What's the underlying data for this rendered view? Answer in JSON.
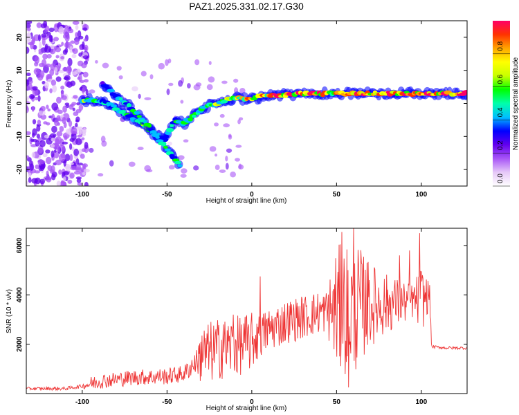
{
  "chart_data": [
    {
      "type": "heatmap",
      "title": "PAZ1.2025.331.02.17.G30",
      "xlabel": "Height of straight line (km)",
      "ylabel": "Frequency (Hz)",
      "xlim": [
        -133,
        127
      ],
      "ylim": [
        -25,
        25
      ],
      "xticks": [
        -100,
        -50,
        0,
        50,
        100
      ],
      "yticks": [
        -20,
        -10,
        0,
        10,
        20
      ],
      "colorbar": {
        "label": "Normalized spectral amplitude",
        "range": [
          0,
          1
        ],
        "ticks": [
          "0.0",
          "0.2",
          "0.4",
          "0.6",
          "0.8"
        ],
        "tick_values": [
          0,
          0.2,
          0.4,
          0.6,
          0.8
        ],
        "colors": [
          "#ffffff",
          "#e6c8f8",
          "#a855f7",
          "#6200ee",
          "#0000ff",
          "#00bfff",
          "#00ffaa",
          "#00ff00",
          "#c8ff00",
          "#ffff00",
          "#ffa500",
          "#ff3300",
          "#ff0066"
        ]
      },
      "ridge": {
        "x": [
          -100,
          -92,
          -85,
          -75,
          -65,
          -58,
          -52,
          -45,
          -40,
          -35,
          -30,
          -25,
          -20,
          -15,
          -10,
          -5,
          0,
          5,
          10,
          20,
          30,
          40,
          50,
          60,
          70,
          80,
          90,
          100,
          110,
          127
        ],
        "y": [
          1,
          1,
          0,
          -3,
          -6,
          -9,
          -11,
          -5,
          -6,
          -4,
          -2,
          -0.5,
          0,
          1,
          1.5,
          1.5,
          1.5,
          2,
          2.5,
          2.5,
          3,
          3,
          3,
          3,
          3,
          3,
          3,
          3,
          3,
          3
        ],
        "amp": [
          0.55,
          0.5,
          0.4,
          0.45,
          0.5,
          0.5,
          0.45,
          0.45,
          0.45,
          0.5,
          0.5,
          0.55,
          0.6,
          0.6,
          0.65,
          0.7,
          0.7,
          0.75,
          0.8,
          0.85,
          0.85,
          0.8,
          0.75,
          0.8,
          0.8,
          0.85,
          0.85,
          0.85,
          0.85,
          0.95
        ]
      },
      "descending_branch": {
        "x": [
          -88,
          -80,
          -72,
          -64,
          -56,
          -50,
          -45,
          -42
        ],
        "y": [
          6,
          2,
          -1,
          -5,
          -10,
          -14,
          -17,
          -19
        ],
        "amp": [
          0.35,
          0.4,
          0.45,
          0.5,
          0.5,
          0.45,
          0.45,
          0.35
        ]
      },
      "noise_band_x": [
        -133,
        -97
      ]
    },
    {
      "type": "line",
      "title": "",
      "xlabel": "Height of straight line (km)",
      "ylabel": "SNR (10 * v/v)",
      "xlim": [
        -133,
        127
      ],
      "ylim": [
        0,
        6700
      ],
      "xticks": [
        -100,
        -50,
        0,
        50,
        100
      ],
      "yticks": [
        2000,
        4000,
        6000
      ],
      "series": [
        {
          "name": "SNR",
          "color": "#ee3333",
          "trend": {
            "x": [
              -133,
              -110,
              -100,
              -90,
              -70,
              -50,
              -40,
              -30,
              -20,
              -10,
              0,
              10,
              20,
              30,
              40,
              45,
              50,
              60,
              70,
              80,
              90,
              100,
              105,
              106,
              115,
              127
            ],
            "y": [
              200,
              200,
              300,
              500,
              650,
              700,
              800,
              1500,
              1800,
              1900,
              2100,
              2600,
              2900,
              3100,
              3300,
              3350,
              3400,
              3500,
              3600,
              3650,
              3700,
              3800,
              4000,
              1900,
              1850,
              1850
            ]
          },
          "noise": {
            "x": [
              -133,
              -100,
              -95,
              -40,
              -32,
              -30,
              0,
              5,
              44,
              46,
              50,
              60,
              70,
              80,
              95,
              100,
              105,
              106,
              127
            ],
            "amp": [
              60,
              80,
              300,
              350,
              500,
              1300,
              1200,
              900,
              900,
              1400,
              2600,
              2800,
              1700,
              1200,
              700,
              1400,
              500,
              60,
              60
            ]
          },
          "spikes": [
            {
              "x": -29.5,
              "y": 2350
            },
            {
              "x": -17,
              "y": 2800
            },
            {
              "x": 5,
              "y": 4750
            },
            {
              "x": 3.5,
              "y": 2700
            },
            {
              "x": -11,
              "y": 3200
            },
            {
              "x": 53,
              "y": 6550
            },
            {
              "x": 60,
              "y": 6700
            },
            {
              "x": 57,
              "y": 250
            },
            {
              "x": 99,
              "y": 6500
            },
            {
              "x": 93,
              "y": 5800
            },
            {
              "x": 87,
              "y": 5600
            },
            {
              "x": 68,
              "y": 5300
            }
          ]
        }
      ]
    }
  ]
}
